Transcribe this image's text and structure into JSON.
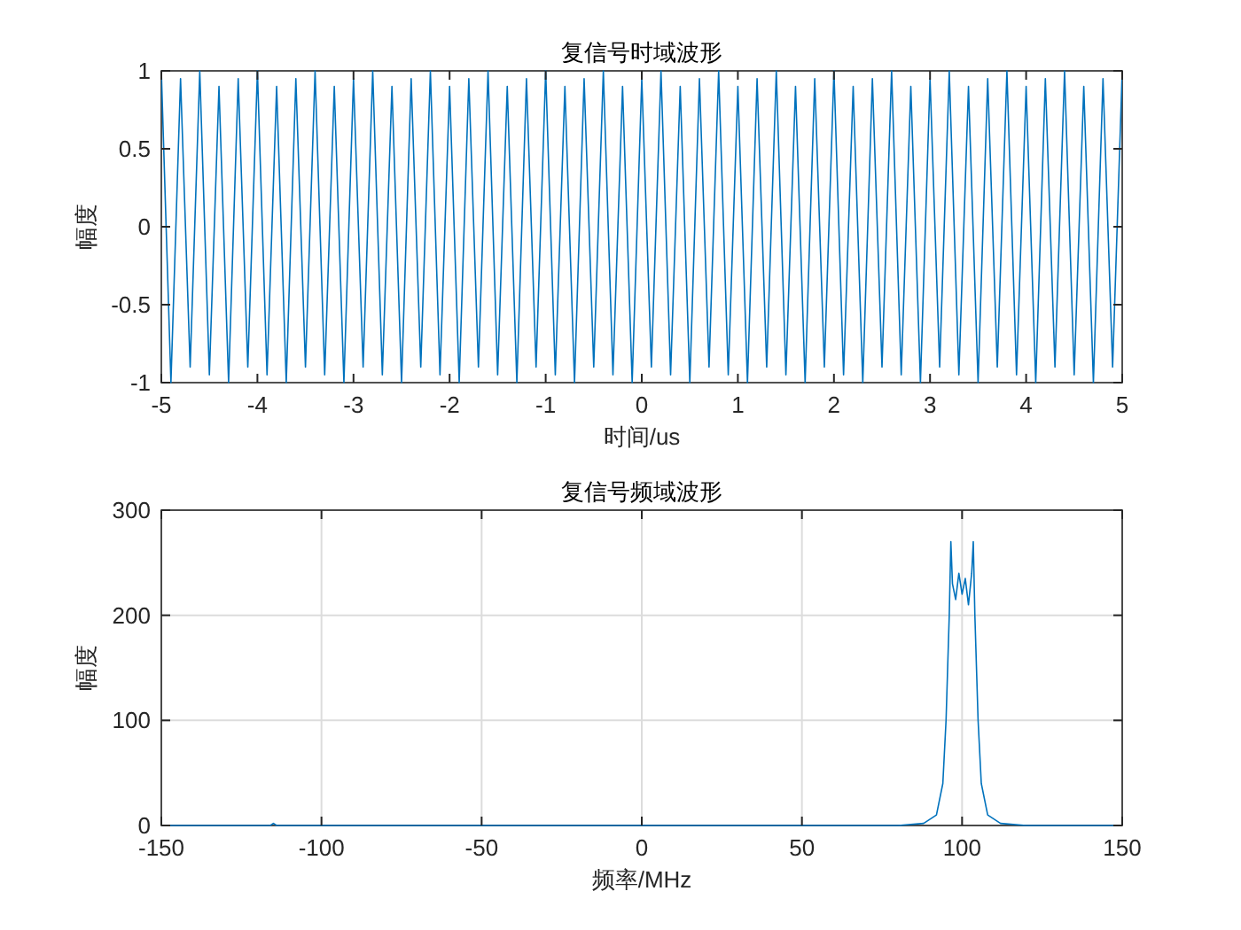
{
  "chart_data": [
    {
      "type": "line",
      "title": "复信号时域波形",
      "xlabel": "时间/us",
      "ylabel": "幅度",
      "xlim": [
        -5,
        5
      ],
      "ylim": [
        -1,
        1
      ],
      "xticks": [
        -5,
        -4,
        -3,
        -2,
        -1,
        0,
        1,
        2,
        3,
        4,
        5
      ],
      "yticks": [
        -1,
        -0.5,
        0,
        0.5,
        1
      ],
      "grid": false,
      "x": [
        -5,
        -4.9,
        -4.8,
        -4.7,
        -4.6,
        -4.5,
        -4.4,
        -4.3,
        -4.2,
        -4.1,
        -4,
        -3.9,
        -3.8,
        -3.7,
        -3.6,
        -3.5,
        -3.4,
        -3.3,
        -3.2,
        -3.1,
        -3,
        -2.9,
        -2.8,
        -2.7,
        -2.6,
        -2.5,
        -2.4,
        -2.3,
        -2.2,
        -2.1,
        -2,
        -1.9,
        -1.8,
        -1.7,
        -1.6,
        -1.5,
        -1.4,
        -1.3,
        -1.2,
        -1.1,
        -1,
        -0.9,
        -0.8,
        -0.7,
        -0.6,
        -0.5,
        -0.4,
        -0.3,
        -0.2,
        -0.1,
        0,
        0.1,
        0.2,
        0.3,
        0.4,
        0.5,
        0.6,
        0.7,
        0.8,
        0.9,
        1,
        1.1,
        1.2,
        1.3,
        1.4,
        1.5,
        1.6,
        1.7,
        1.8,
        1.9,
        2,
        2.1,
        2.2,
        2.3,
        2.4,
        2.5,
        2.6,
        2.7,
        2.8,
        2.9,
        3,
        3.1,
        3.2,
        3.3,
        3.4,
        3.5,
        3.6,
        3.7,
        3.8,
        3.9,
        4,
        4.1,
        4.2,
        4.3,
        4.4,
        4.5,
        4.6,
        4.7,
        4.8,
        4.9,
        5
      ],
      "series": [
        {
          "color": "#0072bd",
          "values": [
            1,
            -1,
            0.95,
            -0.9,
            1,
            -0.95,
            0.9,
            -1,
            0.95,
            -0.9,
            1,
            -0.95,
            0.9,
            -1,
            0.95,
            -0.9,
            1,
            -0.95,
            0.9,
            -1,
            0.95,
            -0.9,
            1,
            -0.95,
            0.9,
            -1,
            0.95,
            -0.9,
            1,
            -0.95,
            0.9,
            -1,
            0.95,
            -0.9,
            1,
            -0.95,
            0.9,
            -1,
            0.95,
            -0.9,
            1,
            -0.95,
            0.9,
            -1,
            0.95,
            -0.9,
            1,
            -0.95,
            0.9,
            -1,
            0.95,
            -0.9,
            1,
            -0.95,
            0.9,
            -1,
            0.95,
            -0.9,
            1,
            -0.95,
            0.9,
            -1,
            0.95,
            -0.9,
            1,
            -0.95,
            0.9,
            -1,
            0.95,
            -0.9,
            1,
            -0.95,
            0.9,
            -1,
            0.95,
            -0.9,
            1,
            -0.95,
            0.9,
            -1,
            0.95,
            -0.9,
            1,
            -0.95,
            0.9,
            -1,
            0.95,
            -0.9,
            1,
            -0.95,
            0.9,
            -1,
            0.95,
            -0.9,
            1,
            -0.95,
            0.9,
            -1,
            0.95,
            -0.9,
            1
          ]
        }
      ]
    },
    {
      "type": "line",
      "title": "复信号频域波形",
      "xlabel": "频率/MHz",
      "ylabel": "幅度",
      "xlim": [
        -150,
        150
      ],
      "ylim": [
        0,
        300
      ],
      "xticks": [
        -150,
        -100,
        -50,
        0,
        50,
        100,
        150
      ],
      "yticks": [
        0,
        100,
        200,
        300
      ],
      "grid": true,
      "x": [
        -150,
        -116,
        -115,
        -114,
        80,
        88,
        92,
        94,
        95,
        96,
        96.5,
        97,
        98,
        99,
        100,
        101,
        102,
        103,
        103.5,
        104,
        105,
        106,
        108,
        112,
        120,
        150
      ],
      "series": [
        {
          "color": "#0072bd",
          "values": [
            0,
            0,
            2,
            0,
            0,
            2,
            10,
            40,
            100,
            200,
            270,
            230,
            215,
            240,
            220,
            235,
            210,
            240,
            270,
            200,
            100,
            40,
            10,
            2,
            0,
            0
          ]
        }
      ]
    }
  ]
}
